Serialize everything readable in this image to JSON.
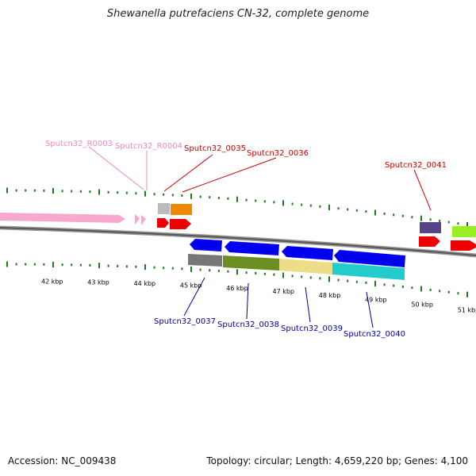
{
  "title": "Shewanella putrefaciens CN-32, complete genome",
  "footer": {
    "accession": "Accession: NC_009438",
    "summary": "Topology: circular; Length: 4,659,220 bp; Genes: 4,100"
  },
  "colors": {
    "backbone": "#555555",
    "ticks": "#1e7a1e",
    "forward_label": "#cc0000",
    "reverse_label": "#0000aa",
    "rna_label": "#ee88bb"
  },
  "scale_labels": [
    "42 kbp",
    "43 kbp",
    "44 kbp",
    "45 kbp",
    "46 kbp",
    "47 kbp",
    "48 kbp",
    "49 kbp",
    "50 kbp",
    "51 kbp"
  ],
  "gene_labels": {
    "r0003": "Sputcn32_R0003",
    "r0004": "Sputcn32_R0004",
    "g0035": "Sputcn32_0035",
    "g0036": "Sputcn32_0036",
    "g0041": "Sputcn32_0041",
    "g0037": "Sputcn32_0037",
    "g0038": "Sputcn32_0038",
    "g0039": "Sputcn32_0039",
    "g0040": "Sputcn32_0040"
  }
}
